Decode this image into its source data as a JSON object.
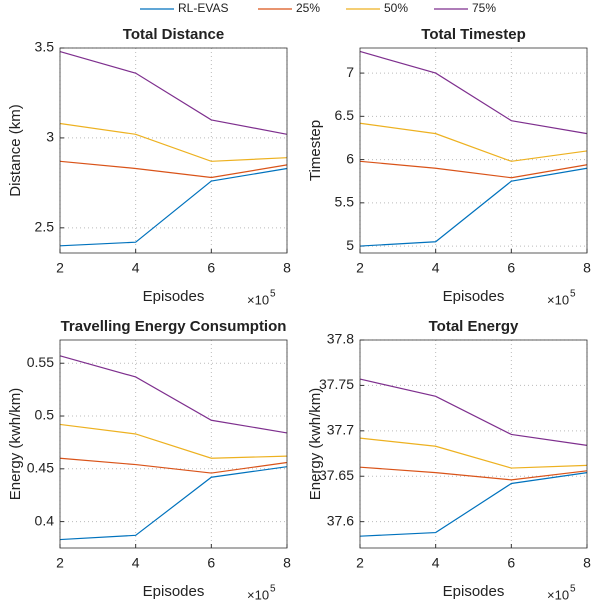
{
  "chart_data": [
    {
      "type": "line",
      "title": "Total Distance",
      "x_label": "Episodes",
      "y_label": "Distance (km)",
      "x_scale_base": "×10",
      "x_scale_exponent": "5",
      "x": [
        2,
        4,
        6,
        8
      ],
      "xlim": [
        2,
        8
      ],
      "xticks": [
        2,
        4,
        6,
        8
      ],
      "ylim": [
        2.36,
        3.5
      ],
      "yticks": [
        2.5,
        3,
        3.5
      ],
      "grid": true,
      "series": [
        {
          "name": "RL-EVAS",
          "color": "#0072BD",
          "values": [
            2.4,
            2.42,
            2.76,
            2.83
          ]
        },
        {
          "name": "25%",
          "color": "#D95319",
          "values": [
            2.87,
            2.83,
            2.78,
            2.85
          ]
        },
        {
          "name": "50%",
          "color": "#EDB120",
          "values": [
            3.08,
            3.02,
            2.87,
            2.89
          ]
        },
        {
          "name": "75%",
          "color": "#7E2F8E",
          "values": [
            3.48,
            3.36,
            3.1,
            3.02
          ]
        }
      ]
    },
    {
      "type": "line",
      "title": "Total Timestep",
      "x_label": "Episodes",
      "y_label": "Timestep",
      "x_scale_base": "×10",
      "x_scale_exponent": "5",
      "x": [
        2,
        4,
        6,
        8
      ],
      "xlim": [
        2,
        8
      ],
      "xticks": [
        2,
        4,
        6,
        8
      ],
      "ylim": [
        4.92,
        7.29
      ],
      "yticks": [
        5,
        5.5,
        6,
        6.5,
        7
      ],
      "grid": true,
      "series": [
        {
          "color": "#0072BD",
          "values": [
            5.0,
            5.05,
            5.75,
            5.9
          ]
        },
        {
          "color": "#D95319",
          "values": [
            5.98,
            5.9,
            5.79,
            5.94
          ]
        },
        {
          "color": "#EDB120",
          "values": [
            6.42,
            6.3,
            5.98,
            6.1
          ]
        },
        {
          "color": "#7E2F8E",
          "values": [
            7.25,
            7.0,
            6.45,
            6.3
          ]
        }
      ]
    },
    {
      "type": "line",
      "title": "Travelling Energy Consumption",
      "x_label": "Episodes",
      "y_label": "Energy (kwh/km)",
      "x_scale_base": "×10",
      "x_scale_exponent": "5",
      "x": [
        2,
        4,
        6,
        8
      ],
      "xlim": [
        2,
        8
      ],
      "xticks": [
        2,
        4,
        6,
        8
      ],
      "ylim": [
        0.375,
        0.572
      ],
      "yticks": [
        0.4,
        0.45,
        0.5,
        0.55
      ],
      "grid": true,
      "series": [
        {
          "color": "#0072BD",
          "values": [
            0.383,
            0.387,
            0.442,
            0.452
          ]
        },
        {
          "color": "#D95319",
          "values": [
            0.46,
            0.454,
            0.446,
            0.456
          ]
        },
        {
          "color": "#EDB120",
          "values": [
            0.492,
            0.483,
            0.46,
            0.462
          ]
        },
        {
          "color": "#7E2F8E",
          "values": [
            0.557,
            0.537,
            0.496,
            0.484
          ]
        }
      ]
    },
    {
      "type": "line",
      "title": "Total Energy",
      "x_label": "Episodes",
      "y_label": "Energy (kwh/km)",
      "x_scale_base": "×10",
      "x_scale_exponent": "5",
      "x": [
        2,
        4,
        6,
        8
      ],
      "xlim": [
        2,
        8
      ],
      "xticks": [
        2,
        4,
        6,
        8
      ],
      "ylim": [
        37.571,
        37.8
      ],
      "yticks": [
        37.6,
        37.65,
        37.7,
        37.75,
        37.8
      ],
      "grid": true,
      "series": [
        {
          "color": "#0072BD",
          "values": [
            37.584,
            37.588,
            37.642,
            37.654
          ]
        },
        {
          "color": "#D95319",
          "values": [
            37.66,
            37.654,
            37.646,
            37.656
          ]
        },
        {
          "color": "#EDB120",
          "values": [
            37.692,
            37.683,
            37.659,
            37.662
          ]
        },
        {
          "color": "#7E2F8E",
          "values": [
            37.757,
            37.738,
            37.696,
            37.684
          ]
        }
      ]
    }
  ]
}
